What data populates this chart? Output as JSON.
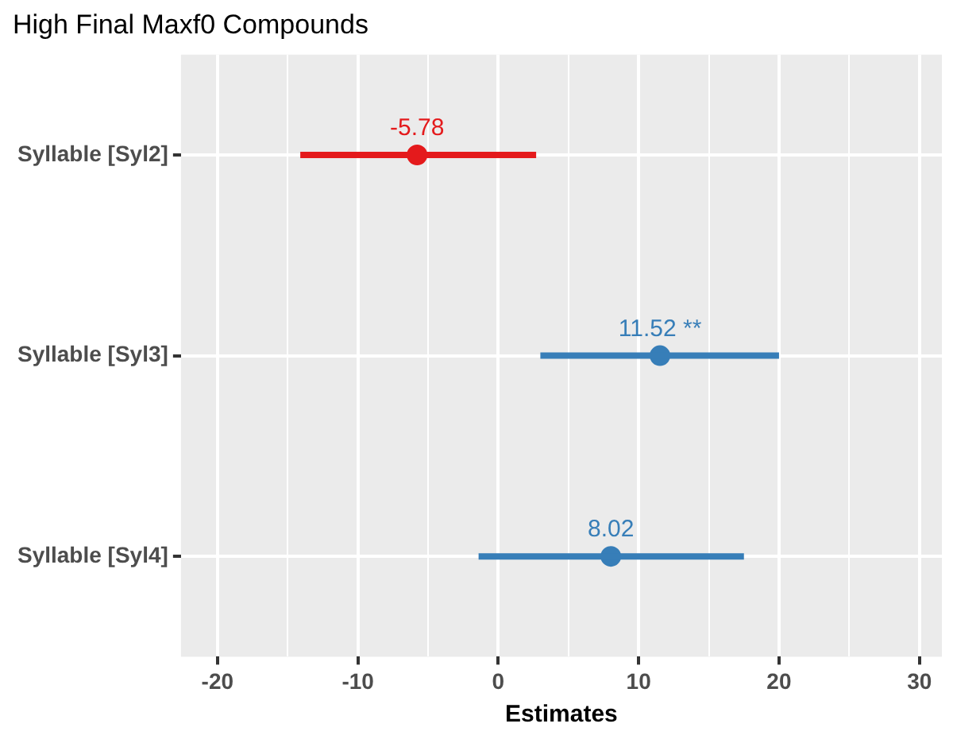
{
  "chart_data": {
    "type": "scatter",
    "orientation": "horizontal",
    "title": "High Final Maxf0 Compounds",
    "xlabel": "Estimates",
    "categories": [
      "Syllable [Syl2]",
      "Syllable [Syl3]",
      "Syllable [Syl4]"
    ],
    "values": [
      -5.78,
      11.52,
      8.02
    ],
    "errors": [
      [
        -14.1,
        2.7
      ],
      [
        3.0,
        20.0
      ],
      [
        -1.4,
        17.5
      ]
    ],
    "colors": [
      "#e41a1c",
      "#377eb8",
      "#377eb8"
    ],
    "value_labels": [
      "-5.78",
      "11.52 **",
      "8.02"
    ],
    "xlim": [
      -22.6,
      31.6
    ],
    "xticks": [
      -20,
      {
        "value": -15,
        "label": null
      },
      -10,
      {
        "value": -5,
        "label": null
      },
      0,
      {
        "value": 5,
        "label": null
      },
      10,
      {
        "value": 15,
        "label": null
      },
      20,
      {
        "value": 25,
        "label": null
      },
      30
    ],
    "grid": true,
    "marker": "circle",
    "legend": false
  }
}
